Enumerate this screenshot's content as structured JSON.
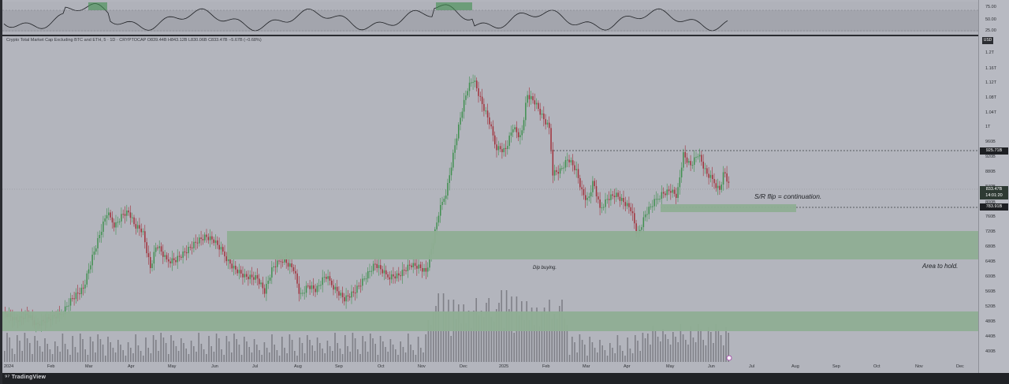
{
  "chart": {
    "title": "Crypto Total Market Cap Excluding BTC and ETH, 5 · 1D · CRYPTOCAP  O839.44B  H843.12B  L830.06B  C833.47B  −5.67B (−0.68%)",
    "currency": "USD"
  },
  "oscillator": {
    "levels": [
      "75.00",
      "50.00",
      "25.00"
    ]
  },
  "y_axis": {
    "ticks": [
      "1.2T",
      "1.16T",
      "1.12T",
      "1.08T",
      "1.04T",
      "1T",
      "960B",
      "920B",
      "880B",
      "840B",
      "800B",
      "760B",
      "720B",
      "680B",
      "640B",
      "600B",
      "560B",
      "520B",
      "480B",
      "440B",
      "400B"
    ],
    "badges": {
      "resistance": "925.71B",
      "last_price": "833.47B",
      "countdown": "14:01:20",
      "support": "783.91B"
    }
  },
  "x_axis": {
    "ticks": [
      "2024",
      "Feb",
      "Mar",
      "Apr",
      "May",
      "Jun",
      "Jul",
      "Aug",
      "Sep",
      "Oct",
      "Nov",
      "Dec",
      "2025",
      "Feb",
      "Mar",
      "Apr",
      "May",
      "Jun",
      "Jul",
      "Aug",
      "Sep",
      "Oct",
      "Nov",
      "Dec"
    ]
  },
  "annotations": {
    "sr_flip": "S/R flip = continuation.",
    "dip_buying": "Dip buying.",
    "area_to_hold": "Area to hold."
  },
  "footer": {
    "brand": "TradingView"
  },
  "colors": {
    "up": "#3f8f4f",
    "down": "#a0303a",
    "zone": "#8fae94",
    "background": "#b3b5bd"
  },
  "chart_data": {
    "type": "candlestick",
    "series": "Crypto Total Market Cap Excluding BTC and ETH",
    "y_unit": "USD",
    "ylim": [
      "400B",
      "1.2T"
    ],
    "last_close": "833.47B",
    "levels": {
      "resistance": "925.71B",
      "support": "783.91B"
    }
  }
}
